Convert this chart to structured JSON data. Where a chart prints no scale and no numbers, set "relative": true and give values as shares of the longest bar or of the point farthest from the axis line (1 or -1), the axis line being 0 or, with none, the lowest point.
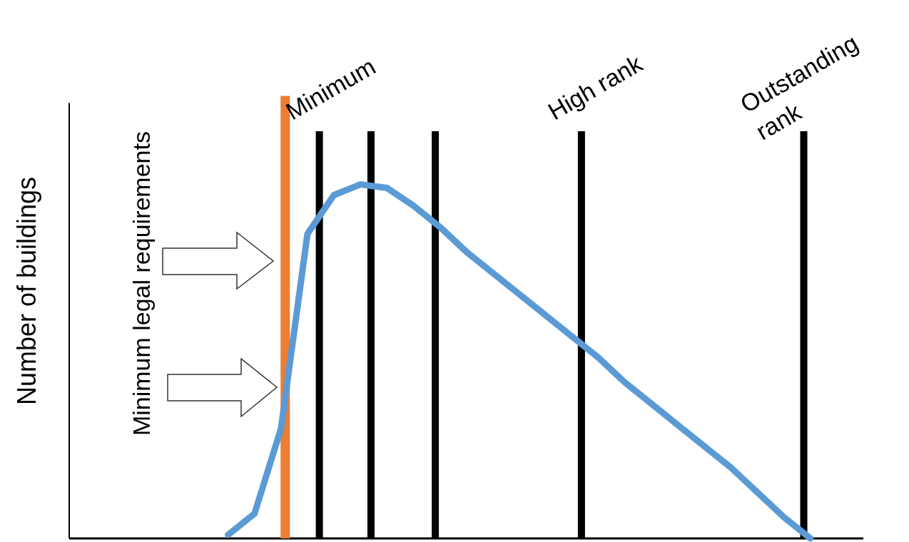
{
  "chart_data": {
    "type": "line",
    "ylabel": "Number of buildings",
    "relative": true,
    "annotations": [
      "Minimum legal requirements",
      "Minimum",
      "High rank",
      "Outstanding rank"
    ],
    "categories": [
      null,
      null,
      null,
      null,
      null,
      null,
      null,
      null,
      null,
      null,
      null,
      null,
      null,
      null,
      null,
      null,
      null,
      null,
      null,
      null,
      null,
      null,
      null,
      null,
      null,
      null,
      null,
      null,
      null,
      null,
      null
    ],
    "series": [
      {
        "color": "#5b9bd5",
        "values": [
          null,
          null,
          null,
          null,
          null,
          null,
          0.01,
          0.07,
          0.31,
          0.86,
          0.97,
          1,
          0.99,
          0.94,
          0.88,
          0.81,
          0.75,
          0.69,
          0.63,
          0.57,
          0.51,
          0.44,
          0.38,
          0.32,
          0.26,
          0.2,
          0.13,
          0.06,
          0,
          null,
          null
        ]
      }
    ]
  }
}
